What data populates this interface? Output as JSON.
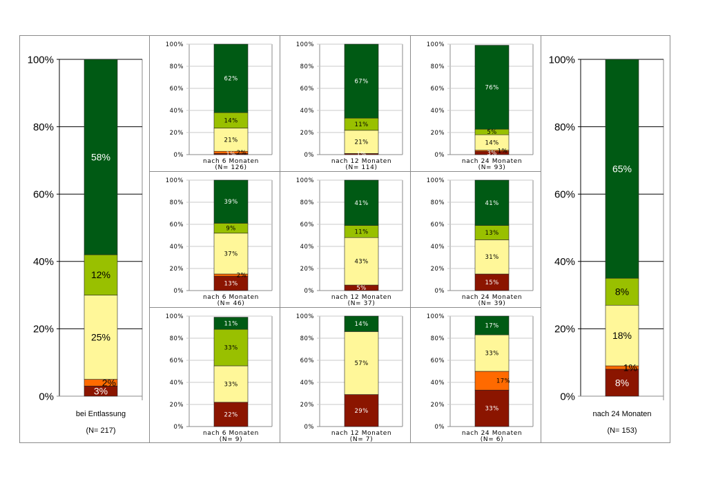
{
  "colors": {
    "very_good": "#005a14",
    "good": "#99c000",
    "medium": "#fff799",
    "poor": "#ff6a00",
    "very_poor": "#8b1500",
    "frame": "#8a8a8a",
    "gridline": "#000000"
  },
  "chart_data": [
    {
      "id": "left-large",
      "type": "bar",
      "stacked": true,
      "size": "large",
      "category": "bei Entlassung",
      "n_label": "(N= 217)",
      "ylim": [
        0,
        100
      ],
      "yticks": [
        "0%",
        "20%",
        "40%",
        "60%",
        "80%",
        "100%"
      ],
      "segments": [
        {
          "key": "very_poor",
          "value": 3,
          "label": "3%"
        },
        {
          "key": "poor",
          "value": 2,
          "label": "2%"
        },
        {
          "key": "medium",
          "value": 25,
          "label": "25%"
        },
        {
          "key": "good",
          "value": 12,
          "label": "12%"
        },
        {
          "key": "very_good",
          "value": 58,
          "label": "58%"
        }
      ]
    },
    {
      "id": "r1c1",
      "type": "bar",
      "stacked": true,
      "size": "small",
      "category": "nach 6 Monaten",
      "n_label": "(N= 126)",
      "ylim": [
        0,
        100
      ],
      "yticks": [
        "0%",
        "20%",
        "40%",
        "60%",
        "80%",
        "100%"
      ],
      "segments": [
        {
          "key": "very_poor",
          "value": 1,
          "label": "1%"
        },
        {
          "key": "poor",
          "value": 2,
          "label": "2%"
        },
        {
          "key": "medium",
          "value": 21,
          "label": "21%"
        },
        {
          "key": "good",
          "value": 14,
          "label": "14%"
        },
        {
          "key": "very_good",
          "value": 62,
          "label": "62%"
        }
      ]
    },
    {
      "id": "r1c2",
      "type": "bar",
      "stacked": true,
      "size": "small",
      "category": "nach 12 Monaten",
      "n_label": "(N= 114)",
      "ylim": [
        0,
        100
      ],
      "yticks": [
        "0%",
        "20%",
        "40%",
        "60%",
        "80%",
        "100%"
      ],
      "segments": [
        {
          "key": "very_poor",
          "value": 1,
          "label": "1%"
        },
        {
          "key": "medium",
          "value": 21,
          "label": "21%"
        },
        {
          "key": "good",
          "value": 11,
          "label": "11%"
        },
        {
          "key": "very_good",
          "value": 67,
          "label": "67%"
        }
      ]
    },
    {
      "id": "r1c3",
      "type": "bar",
      "stacked": true,
      "size": "small",
      "category": "nach 24 Monaten",
      "n_label": "(N= 93)",
      "ylim": [
        0,
        100
      ],
      "yticks": [
        "0%",
        "20%",
        "40%",
        "60%",
        "80%",
        "100%"
      ],
      "segments": [
        {
          "key": "very_poor",
          "value": 3,
          "label": "3%"
        },
        {
          "key": "poor",
          "value": 1,
          "label": "1%"
        },
        {
          "key": "medium",
          "value": 14,
          "label": "14%"
        },
        {
          "key": "good",
          "value": 5,
          "label": "5%"
        },
        {
          "key": "very_good",
          "value": 76,
          "label": "76%"
        }
      ]
    },
    {
      "id": "r2c1",
      "type": "bar",
      "stacked": true,
      "size": "small",
      "category": "nach 6 Monaten",
      "n_label": "(N= 46)",
      "ylim": [
        0,
        100
      ],
      "yticks": [
        "0%",
        "20%",
        "40%",
        "60%",
        "80%",
        "100%"
      ],
      "segments": [
        {
          "key": "very_poor",
          "value": 13,
          "label": "13%"
        },
        {
          "key": "poor",
          "value": 2,
          "label": "2%"
        },
        {
          "key": "medium",
          "value": 37,
          "label": "37%"
        },
        {
          "key": "good",
          "value": 9,
          "label": "9%"
        },
        {
          "key": "very_good",
          "value": 39,
          "label": "39%"
        }
      ]
    },
    {
      "id": "r2c2",
      "type": "bar",
      "stacked": true,
      "size": "small",
      "category": "nach 12 Monaten",
      "n_label": "(N= 37)",
      "ylim": [
        0,
        100
      ],
      "yticks": [
        "0%",
        "20%",
        "40%",
        "60%",
        "80%",
        "100%"
      ],
      "segments": [
        {
          "key": "very_poor",
          "value": 5,
          "label": "5%"
        },
        {
          "key": "medium",
          "value": 43,
          "label": "43%"
        },
        {
          "key": "good",
          "value": 11,
          "label": "11%"
        },
        {
          "key": "very_good",
          "value": 41,
          "label": "41%"
        }
      ]
    },
    {
      "id": "r2c3",
      "type": "bar",
      "stacked": true,
      "size": "small",
      "category": "nach 24 Monaten",
      "n_label": "(N= 39)",
      "ylim": [
        0,
        100
      ],
      "yticks": [
        "0%",
        "20%",
        "40%",
        "60%",
        "80%",
        "100%"
      ],
      "segments": [
        {
          "key": "very_poor",
          "value": 15,
          "label": "15%"
        },
        {
          "key": "medium",
          "value": 31,
          "label": "31%"
        },
        {
          "key": "good",
          "value": 13,
          "label": "13%"
        },
        {
          "key": "very_good",
          "value": 41,
          "label": "41%"
        }
      ]
    },
    {
      "id": "r3c1",
      "type": "bar",
      "stacked": true,
      "size": "small",
      "category": "nach 6 Monaten",
      "n_label": "(N= 9)",
      "ylim": [
        0,
        100
      ],
      "yticks": [
        "0%",
        "20%",
        "40%",
        "60%",
        "80%",
        "100%"
      ],
      "segments": [
        {
          "key": "very_poor",
          "value": 22,
          "label": "22%"
        },
        {
          "key": "medium",
          "value": 33,
          "label": "33%"
        },
        {
          "key": "good",
          "value": 33,
          "label": "33%"
        },
        {
          "key": "very_good",
          "value": 11,
          "label": "11%"
        }
      ]
    },
    {
      "id": "r3c2",
      "type": "bar",
      "stacked": true,
      "size": "small",
      "category": "nach 12 Monaten",
      "n_label": "(N= 7)",
      "ylim": [
        0,
        100
      ],
      "yticks": [
        "0%",
        "20%",
        "40%",
        "60%",
        "80%",
        "100%"
      ],
      "segments": [
        {
          "key": "very_poor",
          "value": 29,
          "label": "29%"
        },
        {
          "key": "medium",
          "value": 57,
          "label": "57%"
        },
        {
          "key": "very_good",
          "value": 14,
          "label": "14%"
        }
      ]
    },
    {
      "id": "r3c3",
      "type": "bar",
      "stacked": true,
      "size": "small",
      "category": "nach 24 Monaten",
      "n_label": "(N= 6)",
      "ylim": [
        0,
        100
      ],
      "yticks": [
        "0%",
        "20%",
        "40%",
        "60%",
        "80%",
        "100%"
      ],
      "segments": [
        {
          "key": "very_poor",
          "value": 33,
          "label": "33%"
        },
        {
          "key": "poor",
          "value": 17,
          "label": "17%"
        },
        {
          "key": "medium",
          "value": 33,
          "label": "33%"
        },
        {
          "key": "very_good",
          "value": 17,
          "label": "17%"
        }
      ]
    },
    {
      "id": "right-large",
      "type": "bar",
      "stacked": true,
      "size": "large",
      "category": "nach 24 Monaten",
      "n_label": "(N= 153)",
      "ylim": [
        0,
        100
      ],
      "yticks": [
        "0%",
        "20%",
        "40%",
        "60%",
        "80%",
        "100%"
      ],
      "segments": [
        {
          "key": "very_poor",
          "value": 8,
          "label": "8%"
        },
        {
          "key": "poor",
          "value": 1,
          "label": "1%"
        },
        {
          "key": "medium",
          "value": 18,
          "label": "18%"
        },
        {
          "key": "good",
          "value": 8,
          "label": "8%"
        },
        {
          "key": "very_good",
          "value": 65,
          "label": "65%"
        }
      ]
    }
  ]
}
